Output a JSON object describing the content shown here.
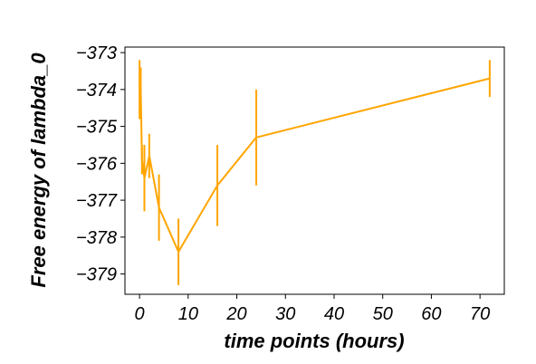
{
  "chart_data": {
    "type": "line",
    "title": "",
    "xlabel": "time points (hours)",
    "ylabel": "Free energy of lambda_0",
    "xlim": [
      -3,
      75
    ],
    "ylim": [
      -379.55,
      -372.85
    ],
    "xticks": [
      0,
      10,
      20,
      30,
      40,
      50,
      60,
      70
    ],
    "yticks": [
      -373,
      -374,
      -375,
      -376,
      -377,
      -378,
      -379
    ],
    "grid": false,
    "legend": "none",
    "series": [
      {
        "color": "#FFA500",
        "x": [
          0,
          0.25,
          0.5,
          1,
          2,
          4,
          8,
          16,
          24,
          72
        ],
        "y": [
          -374.0,
          -374.1,
          -375.9,
          -376.4,
          -375.8,
          -377.2,
          -378.4,
          -376.6,
          -375.3,
          -373.7
        ],
        "yerr": [
          0.8,
          0.7,
          0.4,
          0.9,
          0.6,
          0.9,
          0.9,
          1.1,
          1.3,
          0.5
        ]
      }
    ]
  }
}
